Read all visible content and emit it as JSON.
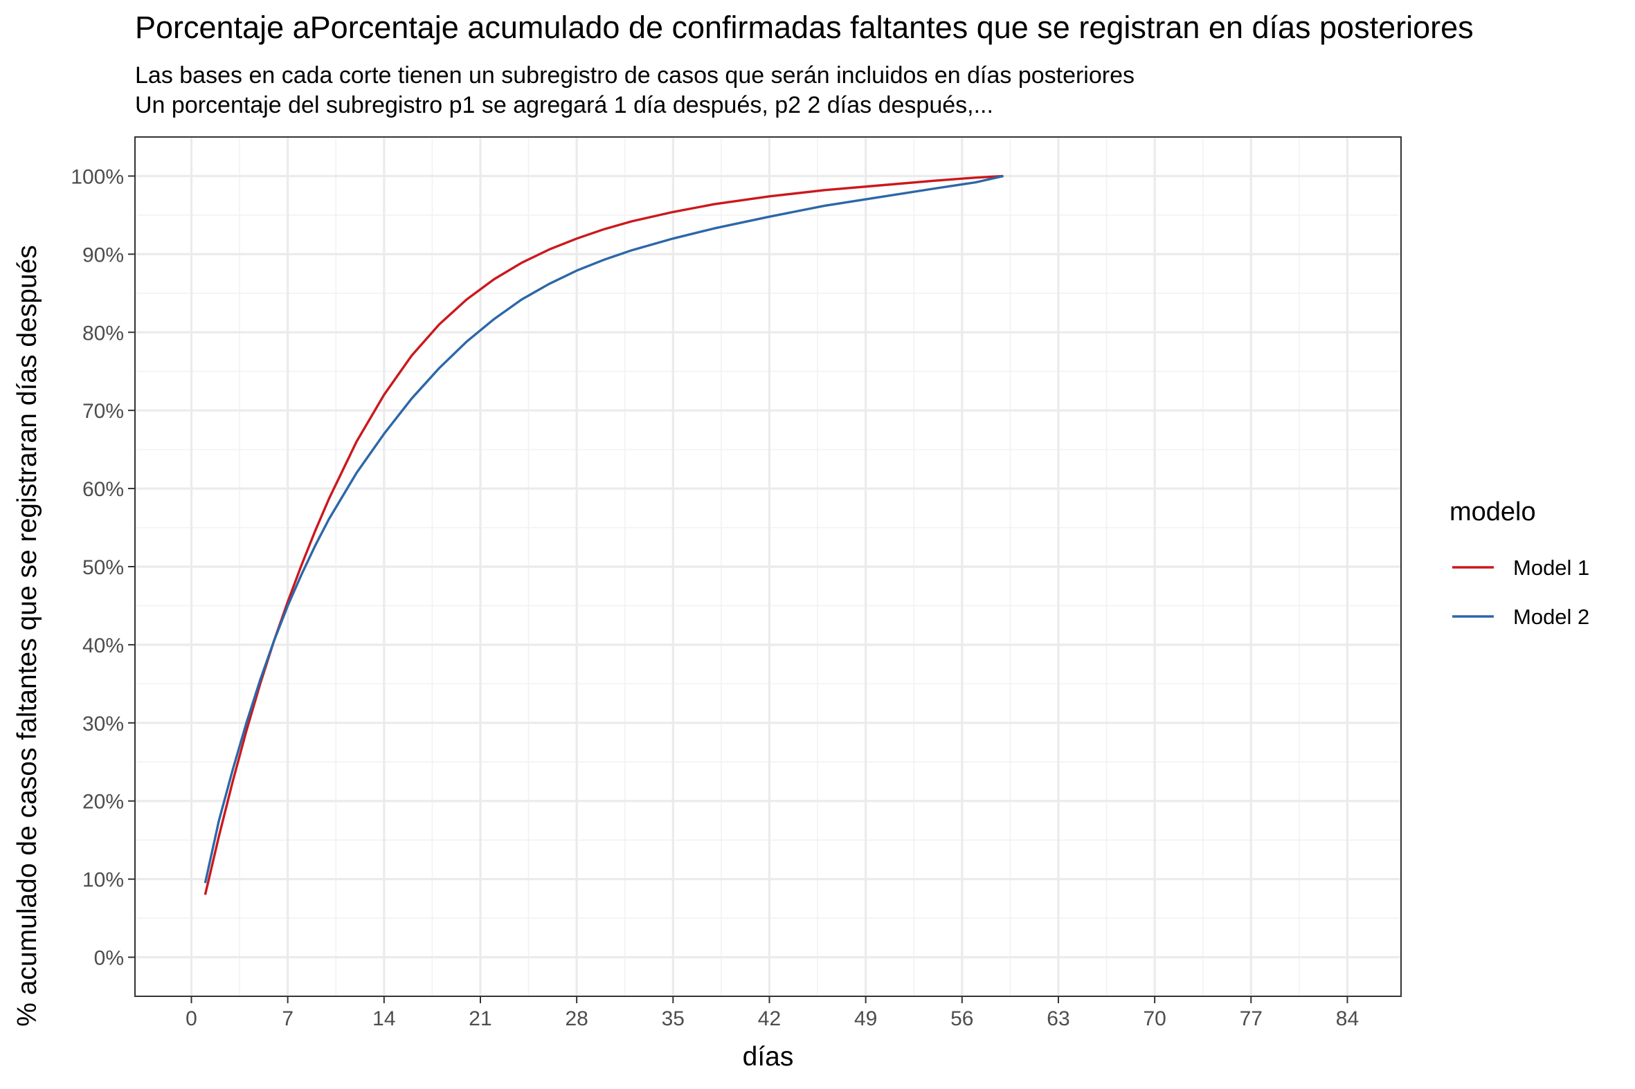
{
  "chart_data": {
    "type": "line",
    "title": "Porcentaje aPorcentaje acumulado de confirmadas faltantes que se registran en días posteriores",
    "subtitle_lines": [
      "Las bases en cada corte tienen un subregistro de casos que serán incluidos en días posteriores",
      "Un porcentaje del subregistro p1 se agregará 1 día después, p2 2 días después,..."
    ],
    "xlabel": "días",
    "ylabel": "% acumulado de casos faltantes que se registraran días después",
    "xlim": [
      -4.1,
      87.9
    ],
    "ylim": [
      -0.05,
      1.05
    ],
    "x_ticks": [
      0,
      7,
      14,
      21,
      28,
      35,
      42,
      49,
      56,
      63,
      70,
      77,
      84
    ],
    "y_ticks": [
      0,
      0.1,
      0.2,
      0.3,
      0.4,
      0.5,
      0.6,
      0.7,
      0.8,
      0.9,
      1.0
    ],
    "y_tick_labels": [
      "0%",
      "10%",
      "20%",
      "30%",
      "40%",
      "50%",
      "60%",
      "70%",
      "80%",
      "90%",
      "100%"
    ],
    "grid": true,
    "legend": {
      "title": "modelo",
      "placement": "right"
    },
    "series": [
      {
        "name": "Model 1",
        "color": "#cb181d",
        "x": [
          1,
          2,
          3,
          4,
          5,
          6,
          7,
          8,
          9,
          10,
          12,
          14,
          16,
          18,
          20,
          22,
          24,
          26,
          28,
          30,
          32,
          35,
          38,
          42,
          46,
          50,
          54,
          57,
          59
        ],
        "y": [
          0.08,
          0.155,
          0.225,
          0.29,
          0.35,
          0.405,
          0.455,
          0.502,
          0.546,
          0.587,
          0.66,
          0.72,
          0.77,
          0.81,
          0.842,
          0.868,
          0.889,
          0.906,
          0.92,
          0.932,
          0.942,
          0.954,
          0.964,
          0.974,
          0.982,
          0.988,
          0.994,
          0.998,
          1.0
        ]
      },
      {
        "name": "Model 2",
        "color": "#2c67a8",
        "x": [
          1,
          2,
          3,
          4,
          5,
          6,
          7,
          8,
          9,
          10,
          12,
          14,
          16,
          18,
          20,
          22,
          24,
          26,
          28,
          30,
          32,
          35,
          38,
          42,
          46,
          50,
          54,
          57,
          59
        ],
        "y": [
          0.095,
          0.175,
          0.24,
          0.3,
          0.355,
          0.405,
          0.45,
          0.49,
          0.527,
          0.561,
          0.62,
          0.67,
          0.715,
          0.754,
          0.788,
          0.817,
          0.842,
          0.862,
          0.879,
          0.893,
          0.905,
          0.92,
          0.933,
          0.948,
          0.962,
          0.973,
          0.984,
          0.992,
          1.0
        ]
      }
    ]
  }
}
